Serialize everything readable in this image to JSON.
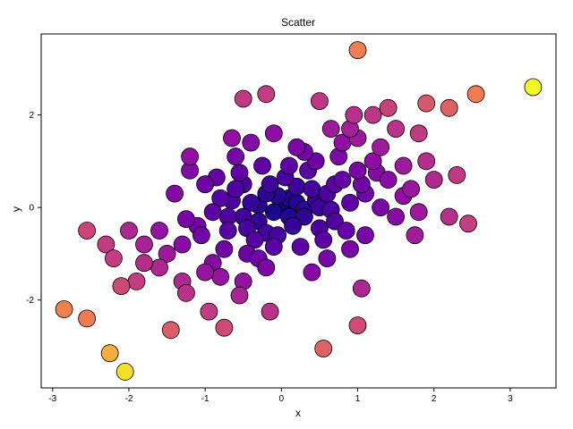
{
  "chart_data": {
    "type": "scatter",
    "title": "Scatter",
    "xlabel": "x",
    "ylabel": "y",
    "xlim": [
      -3.15,
      3.6
    ],
    "ylim": [
      -3.9,
      3.75
    ],
    "xticks": [
      -3,
      -2,
      -1,
      0,
      1,
      2,
      3
    ],
    "xtick_labels": [
      "-3",
      "-2",
      "-1",
      "0",
      "1",
      "2",
      "3"
    ],
    "yticks": [
      -2,
      0,
      2
    ],
    "ytick_labels": [
      "-2",
      "0",
      "2"
    ],
    "grid": false,
    "colormap": "plasma",
    "color_encodes": "distance from origin",
    "marker_edge_color": "#000000",
    "points": [
      {
        "x": 0.0,
        "y": 0.0
      },
      {
        "x": -0.1,
        "y": -0.1
      },
      {
        "x": 0.1,
        "y": 0.2
      },
      {
        "x": 0.2,
        "y": 0.1
      },
      {
        "x": -0.2,
        "y": 0.3
      },
      {
        "x": 0.3,
        "y": -0.2
      },
      {
        "x": -0.3,
        "y": -0.3
      },
      {
        "x": 0.15,
        "y": -0.4
      },
      {
        "x": -0.15,
        "y": 0.5
      },
      {
        "x": 0.4,
        "y": 0.4
      },
      {
        "x": -0.4,
        "y": 0.1
      },
      {
        "x": 0.5,
        "y": 0.0
      },
      {
        "x": -0.5,
        "y": -0.2
      },
      {
        "x": 0.05,
        "y": 0.65
      },
      {
        "x": -0.05,
        "y": -0.6
      },
      {
        "x": 0.6,
        "y": 0.3
      },
      {
        "x": -0.6,
        "y": 0.4
      },
      {
        "x": 0.35,
        "y": 0.8
      },
      {
        "x": -0.35,
        "y": -0.7
      },
      {
        "x": 0.7,
        "y": -0.3
      },
      {
        "x": -0.7,
        "y": -0.5
      },
      {
        "x": 0.25,
        "y": -0.85
      },
      {
        "x": -0.25,
        "y": 0.9
      },
      {
        "x": 0.8,
        "y": 0.6
      },
      {
        "x": -0.8,
        "y": 0.2
      },
      {
        "x": 0.55,
        "y": -0.7
      },
      {
        "x": -0.55,
        "y": 0.75
      },
      {
        "x": 0.9,
        "y": 0.1
      },
      {
        "x": -0.9,
        "y": -0.1
      },
      {
        "x": 0.45,
        "y": 1.0
      },
      {
        "x": -0.45,
        "y": -1.0
      },
      {
        "x": 1.0,
        "y": 0.8
      },
      {
        "x": -1.0,
        "y": 0.5
      },
      {
        "x": 0.75,
        "y": 1.1
      },
      {
        "x": -0.75,
        "y": -0.9
      },
      {
        "x": 1.1,
        "y": 0.3
      },
      {
        "x": -1.1,
        "y": -0.4
      },
      {
        "x": 0.6,
        "y": -1.1
      },
      {
        "x": -0.6,
        "y": 1.1
      },
      {
        "x": 1.2,
        "y": 1.0
      },
      {
        "x": -1.2,
        "y": 0.8
      },
      {
        "x": 0.9,
        "y": -0.9
      },
      {
        "x": -0.9,
        "y": -1.2
      },
      {
        "x": 1.3,
        "y": 0.0
      },
      {
        "x": -1.3,
        "y": -0.8
      },
      {
        "x": 0.2,
        "y": 1.3
      },
      {
        "x": -0.2,
        "y": -1.3
      },
      {
        "x": 1.0,
        "y": 1.5
      },
      {
        "x": -1.0,
        "y": -1.4
      },
      {
        "x": 1.4,
        "y": 0.6
      },
      {
        "x": -1.4,
        "y": 0.3
      },
      {
        "x": 0.8,
        "y": 1.4
      },
      {
        "x": -0.8,
        "y": -1.5
      },
      {
        "x": 1.5,
        "y": -0.2
      },
      {
        "x": -1.5,
        "y": -1.0
      },
      {
        "x": 0.4,
        "y": -1.4
      },
      {
        "x": -0.4,
        "y": 1.4
      },
      {
        "x": 1.6,
        "y": 0.9
      },
      {
        "x": -1.2,
        "y": 1.1
      },
      {
        "x": 1.1,
        "y": -0.6
      },
      {
        "x": -0.5,
        "y": -1.6
      },
      {
        "x": 0.65,
        "y": 1.7
      },
      {
        "x": -0.65,
        "y": 1.5
      },
      {
        "x": 1.7,
        "y": 0.4
      },
      {
        "x": -1.6,
        "y": -0.5
      },
      {
        "x": 1.3,
        "y": 1.3
      },
      {
        "x": -1.3,
        "y": -1.6
      },
      {
        "x": 0.95,
        "y": 2.0
      },
      {
        "x": -0.1,
        "y": 1.6
      },
      {
        "x": 1.8,
        "y": -0.1
      },
      {
        "x": -1.8,
        "y": -0.8
      },
      {
        "x": 1.5,
        "y": 1.7
      },
      {
        "x": -1.8,
        "y": -1.2
      },
      {
        "x": 2.0,
        "y": 0.6
      },
      {
        "x": -2.0,
        "y": -0.5
      },
      {
        "x": 1.8,
        "y": 1.6
      },
      {
        "x": -2.1,
        "y": -1.7
      },
      {
        "x": 2.2,
        "y": -0.2
      },
      {
        "x": -2.2,
        "y": -1.1
      },
      {
        "x": 2.3,
        "y": 0.7
      },
      {
        "x": -2.3,
        "y": -0.8
      },
      {
        "x": 0.5,
        "y": 2.3
      },
      {
        "x": -0.5,
        "y": 2.35
      },
      {
        "x": -0.2,
        "y": 2.45
      },
      {
        "x": 1.2,
        "y": 2.0
      },
      {
        "x": 1.4,
        "y": 2.15
      },
      {
        "x": 1.9,
        "y": 2.25
      },
      {
        "x": 2.2,
        "y": 2.15
      },
      {
        "x": 2.55,
        "y": 2.45
      },
      {
        "x": 2.45,
        "y": -0.35
      },
      {
        "x": 1.75,
        "y": -0.6
      },
      {
        "x": -2.55,
        "y": -0.5
      },
      {
        "x": 1.0,
        "y": 3.4
      },
      {
        "x": 3.3,
        "y": 2.6
      },
      {
        "x": -2.85,
        "y": -2.2
      },
      {
        "x": -2.55,
        "y": -2.4
      },
      {
        "x": -2.25,
        "y": -3.15
      },
      {
        "x": -2.05,
        "y": -3.55
      },
      {
        "x": -1.45,
        "y": -2.65
      },
      {
        "x": -0.75,
        "y": -2.6
      },
      {
        "x": -0.95,
        "y": -2.25
      },
      {
        "x": -0.15,
        "y": -2.25
      },
      {
        "x": 0.55,
        "y": -3.05
      },
      {
        "x": 1.0,
        "y": -2.55
      },
      {
        "x": 1.05,
        "y": -1.75
      },
      {
        "x": -1.25,
        "y": -1.85
      },
      {
        "x": -0.55,
        "y": -1.9
      },
      {
        "x": 0.3,
        "y": -0.05
      },
      {
        "x": -0.3,
        "y": 0.05
      },
      {
        "x": 0.1,
        "y": -0.2
      },
      {
        "x": -0.05,
        "y": 0.25
      },
      {
        "x": 0.45,
        "y": 0.15
      },
      {
        "x": -0.45,
        "y": -0.45
      },
      {
        "x": 0.2,
        "y": 0.45
      },
      {
        "x": -0.2,
        "y": -0.55
      },
      {
        "x": 0.65,
        "y": -0.05
      },
      {
        "x": -0.65,
        "y": 0.15
      },
      {
        "x": 0.1,
        "y": 0.9
      },
      {
        "x": -0.1,
        "y": -0.85
      },
      {
        "x": 0.85,
        "y": -0.5
      },
      {
        "x": -0.85,
        "y": 0.65
      },
      {
        "x": 1.05,
        "y": 0.5
      },
      {
        "x": -1.05,
        "y": -0.6
      },
      {
        "x": 0.3,
        "y": 1.2
      },
      {
        "x": -0.3,
        "y": -1.1
      },
      {
        "x": 1.25,
        "y": 0.75
      },
      {
        "x": -1.25,
        "y": -0.25
      },
      {
        "x": 0.7,
        "y": 0.5
      },
      {
        "x": -0.7,
        "y": -0.2
      },
      {
        "x": 0.5,
        "y": -0.45
      },
      {
        "x": -0.5,
        "y": 0.5
      },
      {
        "x": 1.6,
        "y": 0.25
      },
      {
        "x": -1.6,
        "y": -1.3
      },
      {
        "x": 1.9,
        "y": 1.0
      },
      {
        "x": -1.9,
        "y": -1.6
      },
      {
        "x": 0.9,
        "y": 1.7
      }
    ]
  }
}
